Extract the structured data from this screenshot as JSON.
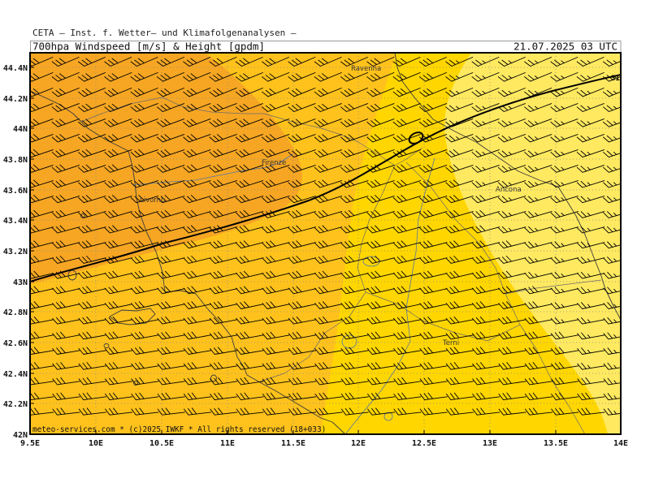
{
  "header": {
    "institute": "CETA – Inst. f. Wetter– und Klimafolgenanalysen –",
    "parameter": "700hpa_Windspeed_[m/s]_&_Height_[gpdm]",
    "valid_time": "21.07.2025 03 UTC"
  },
  "axes": {
    "lat_labels": [
      "44.4N",
      "44.2N",
      "44N",
      "43.8N",
      "43.6N",
      "43.4N",
      "43.2N",
      "43N",
      "42.8N",
      "42.6N",
      "42.4N",
      "42.2N",
      "42N"
    ],
    "lon_labels": [
      "9.5E",
      "10E",
      "10.5E",
      "11E",
      "11.5E",
      "12E",
      "12.5E",
      "13E",
      "13.5E",
      "14E"
    ]
  },
  "cities": [
    "Ravenna",
    "Firenze",
    "Livorno",
    "Ancona",
    "Terni"
  ],
  "contour_label": "31",
  "footer": "meteo-services.com * (c)2025 IWKF * All rights reserved (18+033)",
  "colors": {
    "windspeed_strong": "#f6a623",
    "windspeed_moderate": "#ffc21c",
    "windspeed_medium": "#ffd600",
    "windspeed_light": "#ffe960",
    "height_contour": "#000000",
    "wind_barbs": "#000000"
  }
}
